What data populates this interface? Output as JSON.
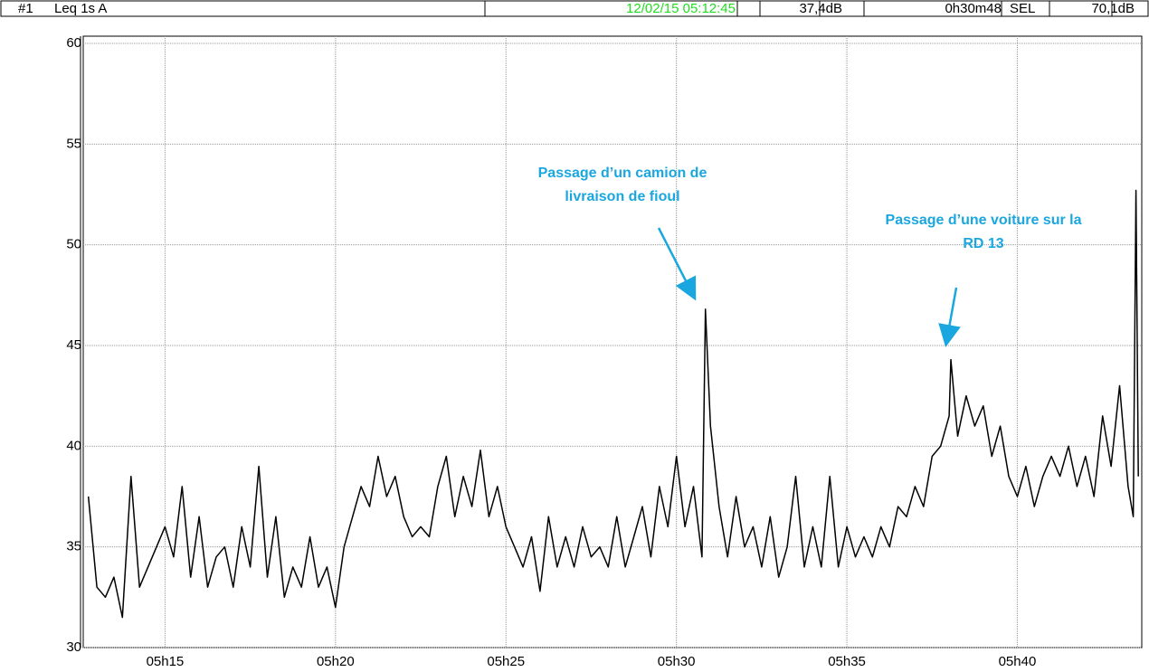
{
  "header": {
    "channel": "#1",
    "measure": "Leq 1s  A",
    "datetime": "12/02/15 05:12:45",
    "level": "37,4dB",
    "duration": "0h30m48",
    "sel_label": "SEL",
    "sel_value": "70,1dB"
  },
  "chart_data": {
    "type": "line",
    "color": "#000000",
    "grid": true,
    "annotations": [
      "Passage d’un camion de",
      "livraison de fioul",
      "Passage d’une voiture sur la",
      "RD 13"
    ],
    "xlim": [
      312.6,
      343.65
    ],
    "ylim": [
      30,
      60
    ],
    "yticks": [
      30,
      35,
      40,
      45,
      50,
      55,
      60
    ],
    "xticks": [
      {
        "value": 315,
        "label": "05h15"
      },
      {
        "value": 320,
        "label": "05h20"
      },
      {
        "value": 325,
        "label": "05h25"
      },
      {
        "value": 330,
        "label": "05h30"
      },
      {
        "value": 335,
        "label": "05h35"
      },
      {
        "value": 340,
        "label": "05h40"
      }
    ],
    "x": [
      312.75,
      313,
      313.25,
      313.5,
      313.75,
      314,
      314.25,
      314.5,
      314.75,
      315,
      315.25,
      315.5,
      315.75,
      316,
      316.25,
      316.5,
      316.75,
      317,
      317.25,
      317.5,
      317.75,
      318,
      318.25,
      318.5,
      318.75,
      319,
      319.25,
      319.5,
      319.75,
      320,
      320.25,
      320.5,
      320.75,
      321,
      321.25,
      321.5,
      321.75,
      322,
      322.25,
      322.5,
      322.75,
      323,
      323.25,
      323.5,
      323.75,
      324,
      324.25,
      324.5,
      324.75,
      325,
      325.25,
      325.5,
      325.75,
      326,
      326.25,
      326.5,
      326.75,
      327,
      327.25,
      327.5,
      327.75,
      328,
      328.25,
      328.5,
      328.75,
      329,
      329.25,
      329.5,
      329.75,
      330,
      330.25,
      330.5,
      330.75,
      330.85,
      331,
      331.25,
      331.5,
      331.75,
      332,
      332.25,
      332.5,
      332.75,
      333,
      333.25,
      333.5,
      333.75,
      334,
      334.25,
      334.5,
      334.75,
      335,
      335.25,
      335.5,
      335.75,
      336,
      336.25,
      336.5,
      336.75,
      337,
      337.25,
      337.5,
      337.75,
      338,
      338.05,
      338.25,
      338.5,
      338.75,
      339,
      339.25,
      339.5,
      339.75,
      340,
      340.25,
      340.5,
      340.75,
      341,
      341.25,
      341.5,
      341.75,
      342,
      342.25,
      342.5,
      342.75,
      343,
      343.25,
      343.4,
      343.48,
      343.55
    ],
    "values": [
      37.5,
      33,
      32.5,
      33.5,
      31.5,
      38.5,
      33,
      34,
      35,
      36,
      34.5,
      38,
      33.5,
      36.5,
      33,
      34.5,
      35,
      33,
      36,
      34,
      39,
      33.5,
      36.5,
      32.5,
      34,
      33,
      35.5,
      33,
      34,
      32,
      35,
      36.5,
      38,
      37,
      39.5,
      37.5,
      38.5,
      36.5,
      35.5,
      36,
      35.5,
      38,
      39.5,
      36.5,
      38.5,
      37,
      39.8,
      36.5,
      38,
      36,
      35,
      34,
      35.5,
      32.8,
      36.5,
      34,
      35.5,
      34,
      36,
      34.5,
      35,
      34,
      36.5,
      34,
      35.5,
      37,
      34.5,
      38,
      36,
      39.5,
      36,
      38,
      34.5,
      46.8,
      41,
      37,
      34.5,
      37.5,
      35,
      36,
      34,
      36.5,
      33.5,
      35,
      38.5,
      34,
      36,
      34,
      38.5,
      34,
      36,
      34.5,
      35.5,
      34.5,
      36,
      35,
      37,
      36.5,
      38,
      37,
      39.5,
      40,
      41.5,
      44.3,
      40.5,
      42.5,
      41,
      42,
      39.5,
      41,
      38.5,
      37.5,
      39,
      37,
      38.5,
      39.5,
      38.5,
      40,
      38,
      39.5,
      37.5,
      41.5,
      39,
      43,
      38,
      36.5,
      52.7,
      38.5
    ]
  }
}
